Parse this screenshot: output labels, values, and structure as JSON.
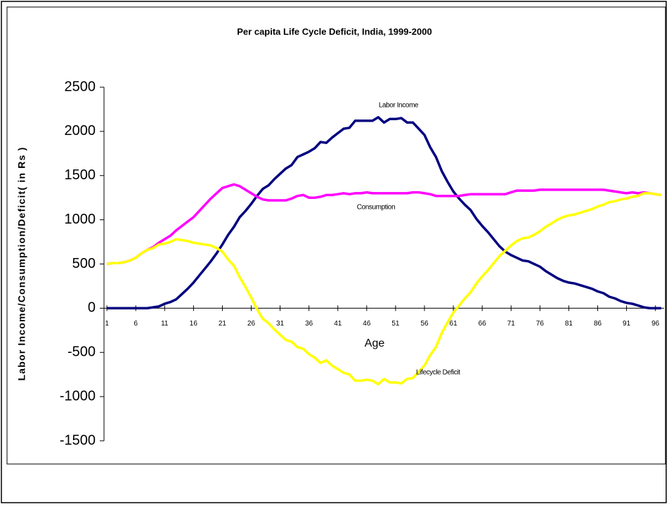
{
  "chart_data": {
    "type": "line",
    "title": "Per capita Life Cycle Deficit, India, 1999-2000",
    "x_label": "Age",
    "y_label": "Labor Income/Consumption/Deficit( in Rs )",
    "x": [
      1,
      2,
      3,
      4,
      5,
      6,
      7,
      8,
      9,
      10,
      11,
      12,
      13,
      14,
      15,
      16,
      17,
      18,
      19,
      20,
      21,
      22,
      23,
      24,
      25,
      26,
      27,
      28,
      29,
      30,
      31,
      32,
      33,
      34,
      35,
      36,
      37,
      38,
      39,
      40,
      41,
      42,
      43,
      44,
      45,
      46,
      47,
      48,
      49,
      50,
      51,
      52,
      53,
      54,
      55,
      56,
      57,
      58,
      59,
      60,
      61,
      62,
      63,
      64,
      65,
      66,
      67,
      68,
      69,
      70,
      71,
      72,
      73,
      74,
      75,
      76,
      77,
      78,
      79,
      80,
      81,
      82,
      83,
      84,
      85,
      86,
      87,
      88,
      89,
      90,
      91,
      92,
      93,
      94,
      95,
      96,
      97
    ],
    "xlim": [
      0.5,
      97.5
    ],
    "xticks": [
      1,
      6,
      11,
      16,
      21,
      26,
      31,
      36,
      41,
      46,
      51,
      56,
      61,
      66,
      71,
      76,
      81,
      86,
      91,
      96
    ],
    "ylim": [
      -1500,
      2500
    ],
    "yticks": [
      -1500,
      -1000,
      -500,
      0,
      500,
      1000,
      1500,
      2000,
      2500
    ],
    "series": [
      {
        "name": "Labor Income",
        "color": "#000080",
        "values": [
          0,
          0,
          0,
          0,
          0,
          0,
          0,
          0,
          10,
          20,
          50,
          70,
          100,
          160,
          220,
          290,
          370,
          450,
          530,
          620,
          720,
          830,
          920,
          1030,
          1100,
          1180,
          1270,
          1350,
          1390,
          1460,
          1520,
          1580,
          1620,
          1710,
          1740,
          1770,
          1810,
          1880,
          1870,
          1930,
          1980,
          2030,
          2040,
          2120,
          2120,
          2120,
          2120,
          2160,
          2100,
          2140,
          2140,
          2150,
          2100,
          2100,
          2030,
          1960,
          1820,
          1710,
          1550,
          1430,
          1320,
          1240,
          1170,
          1110,
          1010,
          930,
          860,
          780,
          700,
          640,
          600,
          570,
          540,
          530,
          500,
          470,
          420,
          380,
          340,
          310,
          290,
          280,
          260,
          240,
          220,
          190,
          170,
          130,
          110,
          80,
          60,
          50,
          30,
          10,
          0,
          0,
          0
        ]
      },
      {
        "name": "Consumption",
        "color": "#ff00ff",
        "values": [
          500,
          510,
          510,
          520,
          540,
          570,
          620,
          660,
          690,
          740,
          780,
          820,
          880,
          930,
          980,
          1030,
          1100,
          1170,
          1240,
          1300,
          1360,
          1380,
          1400,
          1380,
          1340,
          1300,
          1260,
          1230,
          1220,
          1220,
          1220,
          1220,
          1240,
          1270,
          1280,
          1250,
          1250,
          1260,
          1280,
          1280,
          1290,
          1300,
          1290,
          1300,
          1300,
          1310,
          1300,
          1300,
          1300,
          1300,
          1300,
          1300,
          1300,
          1310,
          1310,
          1300,
          1290,
          1270,
          1270,
          1270,
          1270,
          1270,
          1280,
          1290,
          1290,
          1290,
          1290,
          1290,
          1290,
          1290,
          1310,
          1330,
          1330,
          1330,
          1330,
          1340,
          1340,
          1340,
          1340,
          1340,
          1340,
          1340,
          1340,
          1340,
          1340,
          1340,
          1340,
          1330,
          1320,
          1310,
          1300,
          1310,
          1300,
          1310,
          1300,
          1290,
          1280
        ]
      },
      {
        "name": "Lifecycle Deficit",
        "color": "#ffff00",
        "values": [
          500,
          510,
          510,
          520,
          540,
          570,
          620,
          660,
          680,
          720,
          730,
          750,
          780,
          770,
          760,
          740,
          730,
          720,
          710,
          680,
          640,
          550,
          480,
          350,
          240,
          120,
          -10,
          -120,
          -170,
          -240,
          -300,
          -360,
          -380,
          -440,
          -460,
          -520,
          -560,
          -620,
          -590,
          -650,
          -690,
          -730,
          -750,
          -820,
          -820,
          -810,
          -820,
          -860,
          -800,
          -840,
          -840,
          -850,
          -800,
          -790,
          -720,
          -650,
          -530,
          -440,
          -280,
          -160,
          -50,
          30,
          110,
          180,
          280,
          360,
          430,
          510,
          590,
          650,
          710,
          760,
          790,
          800,
          830,
          870,
          920,
          960,
          1000,
          1030,
          1050,
          1060,
          1080,
          1100,
          1120,
          1150,
          1170,
          1200,
          1210,
          1230,
          1240,
          1260,
          1270,
          1300,
          1300,
          1290,
          1280
        ]
      }
    ]
  }
}
